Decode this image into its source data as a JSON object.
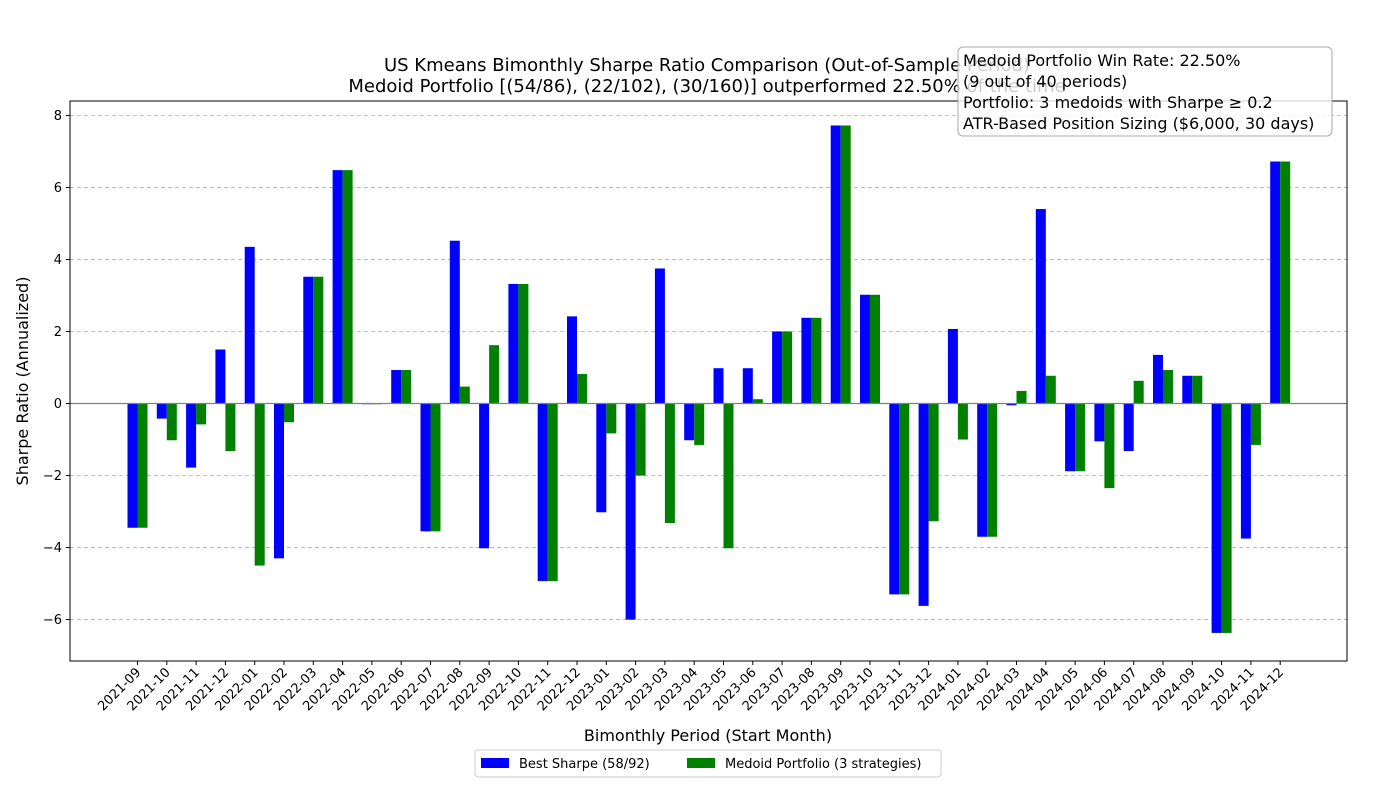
{
  "chart_data": {
    "type": "bar",
    "title": [
      "US Kmeans Bimonthly Sharpe Ratio Comparison (Out-of-Sample Period)",
      "Medoid Portfolio [(54/86), (22/102), (30/160)] outperformed 22.50% of the time"
    ],
    "xlabel": "Bimonthly Period (Start Month)",
    "ylabel": "Sharpe Ratio (Annualized)",
    "ylim": [
      -7.15,
      8.4
    ],
    "yticks": [
      -6,
      -4,
      -2,
      0,
      2,
      4,
      6,
      8
    ],
    "ytick_labels": [
      "−6",
      "−4",
      "−2",
      "0",
      "2",
      "4",
      "6",
      "8"
    ],
    "grid": "horizontal dashed",
    "legend_position": "bottom-center",
    "categories": [
      "2021-09",
      "2021-10",
      "2021-11",
      "2021-12",
      "2022-01",
      "2022-02",
      "2022-03",
      "2022-04",
      "2022-05",
      "2022-06",
      "2022-07",
      "2022-08",
      "2022-09",
      "2022-10",
      "2022-11",
      "2022-12",
      "2023-01",
      "2023-02",
      "2023-03",
      "2023-04",
      "2023-05",
      "2023-06",
      "2023-07",
      "2023-08",
      "2023-09",
      "2023-10",
      "2023-11",
      "2023-12",
      "2024-01",
      "2024-02",
      "2024-03",
      "2024-04",
      "2024-05",
      "2024-06",
      "2024-07",
      "2024-08",
      "2024-09",
      "2024-10",
      "2024-11",
      "2024-12"
    ],
    "series": [
      {
        "name": "Best Sharpe (58/92)",
        "color": "#0000ff",
        "values": [
          -3.45,
          -0.42,
          -1.78,
          1.5,
          4.35,
          -4.3,
          3.52,
          6.48,
          -0.02,
          0.93,
          -3.55,
          4.52,
          -4.02,
          3.32,
          -4.93,
          2.42,
          -3.02,
          -6.0,
          3.75,
          -1.02,
          0.98,
          0.98,
          2.0,
          2.38,
          7.72,
          3.02,
          -5.3,
          -5.62,
          2.07,
          -3.7,
          -0.05,
          5.4,
          -1.88,
          -1.05,
          -1.32,
          1.35,
          0.77,
          -6.37,
          -3.75,
          6.72
        ]
      },
      {
        "name": "Medoid Portfolio (3 strategies)",
        "color": "#008000",
        "values": [
          -3.45,
          -1.02,
          -0.58,
          -1.32,
          -4.5,
          -0.52,
          3.52,
          6.48,
          -0.02,
          0.93,
          -3.55,
          0.47,
          1.62,
          3.32,
          -4.93,
          0.82,
          -0.83,
          -2.0,
          -3.32,
          -1.15,
          -4.02,
          0.12,
          2.0,
          2.38,
          7.72,
          3.02,
          -5.3,
          -3.27,
          -1.0,
          -3.7,
          0.35,
          0.77,
          -1.88,
          -2.35,
          0.63,
          0.93,
          0.77,
          -6.37,
          -1.15,
          6.72
        ]
      }
    ],
    "annotation_box": [
      "Medoid Portfolio Win Rate: 22.50%",
      "(9 out of 40 periods)",
      "Portfolio: 3 medoids with Sharpe ≥ 0.2",
      "ATR-Based Position Sizing ($6,000, 30 days)"
    ]
  }
}
